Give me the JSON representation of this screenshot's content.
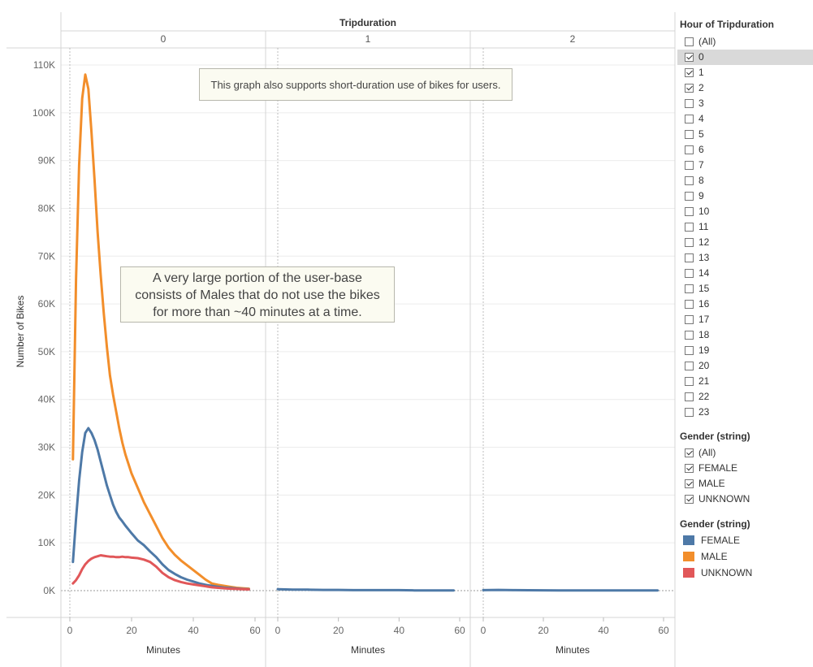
{
  "chart_data": {
    "type": "line",
    "title": "Tripduration",
    "ylabel": "Number of Bikes",
    "xlabel": "Minutes",
    "ylim": [
      0,
      110000
    ],
    "yticks": [
      "0K",
      "10K",
      "20K",
      "30K",
      "40K",
      "50K",
      "60K",
      "70K",
      "80K",
      "90K",
      "100K",
      "110K"
    ],
    "xlim": [
      0,
      60
    ],
    "xticks": [
      "0",
      "20",
      "40",
      "60"
    ],
    "panels": [
      {
        "header": "0",
        "series": [
          {
            "name": "MALE",
            "color": "#f28e2b",
            "x": [
              1,
              2,
              3,
              4,
              5,
              6,
              7,
              8,
              9,
              10,
              11,
              12,
              13,
              14,
              15,
              16,
              17,
              18,
              19,
              20,
              22,
              24,
              26,
              28,
              30,
              32,
              34,
              36,
              38,
              40,
              42,
              44,
              46,
              48,
              50,
              52,
              54,
              56,
              58
            ],
            "y": [
              27500,
              65000,
              89000,
              103000,
              108000,
              105000,
              96000,
              86000,
              75000,
              66000,
              58000,
              51000,
              45000,
              41000,
              37500,
              34000,
              31000,
              28500,
              26500,
              24500,
              21500,
              18500,
              16000,
              13500,
              11000,
              9000,
              7500,
              6300,
              5300,
              4300,
              3300,
              2300,
              1500,
              1200,
              1000,
              800,
              600,
              500,
              400
            ]
          },
          {
            "name": "FEMALE",
            "color": "#4e79a7",
            "x": [
              1,
              2,
              3,
              4,
              5,
              6,
              7,
              8,
              9,
              10,
              11,
              12,
              13,
              14,
              15,
              16,
              17,
              18,
              19,
              20,
              22,
              24,
              26,
              28,
              30,
              32,
              34,
              36,
              38,
              40,
              42,
              44,
              46,
              48,
              50,
              52,
              54,
              56,
              58
            ],
            "y": [
              6000,
              15000,
              23000,
              29000,
              33000,
              34000,
              33000,
              31500,
              29500,
              27000,
              24500,
              22000,
              20000,
              18000,
              16500,
              15300,
              14500,
              13600,
              12800,
              12000,
              10500,
              9500,
              8200,
              7000,
              5500,
              4300,
              3500,
              2800,
              2300,
              1900,
              1500,
              1200,
              1000,
              800,
              650,
              550,
              450,
              350,
              300
            ]
          },
          {
            "name": "UNKNOWN",
            "color": "#e15759",
            "x": [
              1,
              2,
              3,
              4,
              5,
              6,
              7,
              8,
              9,
              10,
              11,
              12,
              13,
              14,
              15,
              16,
              17,
              18,
              19,
              20,
              22,
              24,
              26,
              28,
              30,
              32,
              34,
              36,
              38,
              40,
              42,
              44,
              46,
              48,
              50,
              52,
              54,
              56,
              58
            ],
            "y": [
              1500,
              2200,
              3200,
              4500,
              5500,
              6200,
              6700,
              7000,
              7200,
              7400,
              7300,
              7200,
              7100,
              7100,
              7000,
              7000,
              7100,
              7000,
              7000,
              6900,
              6800,
              6500,
              6000,
              5000,
              3700,
              2800,
              2200,
              1800,
              1500,
              1300,
              1100,
              900,
              700,
              600,
              500,
              400,
              350,
              300,
              250
            ]
          }
        ]
      },
      {
        "header": "1",
        "series": [
          {
            "name": "FEMALE",
            "color": "#4e79a7",
            "x": [
              0,
              5,
              10,
              15,
              20,
              25,
              30,
              35,
              40,
              45,
              50,
              55,
              58
            ],
            "y": [
              300,
              200,
              200,
              150,
              150,
              100,
              100,
              100,
              100,
              50,
              50,
              50,
              50
            ]
          }
        ]
      },
      {
        "header": "2",
        "series": [
          {
            "name": "FEMALE",
            "color": "#4e79a7",
            "x": [
              0,
              5,
              10,
              15,
              20,
              25,
              30,
              35,
              40,
              45,
              50,
              55,
              58
            ],
            "y": [
              100,
              150,
              100,
              80,
              60,
              50,
              50,
              40,
              40,
              30,
              30,
              30,
              30
            ]
          }
        ]
      }
    ],
    "annotations": [
      {
        "text": "This graph also supports short-duration use of bikes for users."
      },
      {
        "lines": [
          "A very large portion of the user-base",
          "consists of Males that do not use the bikes",
          "for more than ~40 minutes at a time."
        ]
      }
    ]
  },
  "filter_hour": {
    "title": "Hour of Tripduration",
    "items": [
      {
        "label": "(All)",
        "checked": false
      },
      {
        "label": "0",
        "checked": true
      },
      {
        "label": "1",
        "checked": true
      },
      {
        "label": "2",
        "checked": true
      },
      {
        "label": "3",
        "checked": false
      },
      {
        "label": "4",
        "checked": false
      },
      {
        "label": "5",
        "checked": false
      },
      {
        "label": "6",
        "checked": false
      },
      {
        "label": "7",
        "checked": false
      },
      {
        "label": "8",
        "checked": false
      },
      {
        "label": "9",
        "checked": false
      },
      {
        "label": "10",
        "checked": false
      },
      {
        "label": "11",
        "checked": false
      },
      {
        "label": "12",
        "checked": false
      },
      {
        "label": "13",
        "checked": false
      },
      {
        "label": "14",
        "checked": false
      },
      {
        "label": "15",
        "checked": false
      },
      {
        "label": "16",
        "checked": false
      },
      {
        "label": "17",
        "checked": false
      },
      {
        "label": "18",
        "checked": false
      },
      {
        "label": "19",
        "checked": false
      },
      {
        "label": "20",
        "checked": false
      },
      {
        "label": "21",
        "checked": false
      },
      {
        "label": "22",
        "checked": false
      },
      {
        "label": "23",
        "checked": false
      }
    ]
  },
  "filter_gender": {
    "title": "Gender (string)",
    "items": [
      {
        "label": "(All)",
        "checked": true
      },
      {
        "label": "FEMALE",
        "checked": true
      },
      {
        "label": "MALE",
        "checked": true
      },
      {
        "label": "UNKNOWN",
        "checked": true
      }
    ]
  },
  "legend": {
    "title": "Gender (string)",
    "items": [
      {
        "label": "FEMALE",
        "color": "#4e79a7"
      },
      {
        "label": "MALE",
        "color": "#f28e2b"
      },
      {
        "label": "UNKNOWN",
        "color": "#e15759"
      }
    ]
  }
}
